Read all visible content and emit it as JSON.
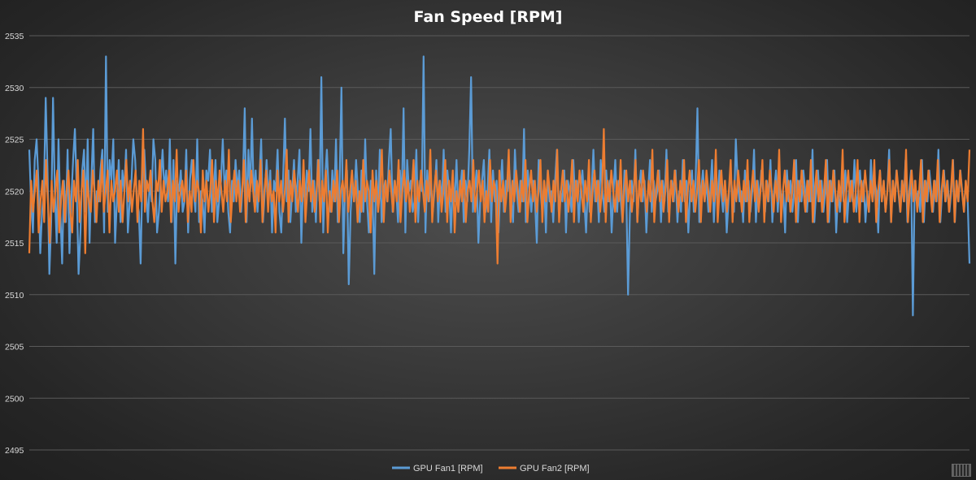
{
  "chart_data": {
    "type": "line",
    "title": "Fan Speed [RPM]",
    "xlabel": "",
    "ylabel": "",
    "ylim": [
      2495,
      2535
    ],
    "yticks": [
      2495,
      2500,
      2505,
      2510,
      2515,
      2520,
      2525,
      2530,
      2535
    ],
    "grid": true,
    "legend_position": "bottom",
    "colors": {
      "background": "#333333",
      "gridline": "#5a5a5a",
      "text": "#d9d9d9"
    },
    "series": [
      {
        "name": "GPU Fan1 [RPM]",
        "color": "#5b9bd5",
        "values": [
          2524,
          2519,
          2516,
          2523,
          2525,
          2521,
          2514,
          2518,
          2520,
          2529,
          2522,
          2512,
          2517,
          2529,
          2520,
          2515,
          2525,
          2518,
          2513,
          2521,
          2517,
          2524,
          2514,
          2519,
          2523,
          2526,
          2520,
          2512,
          2516,
          2522,
          2524,
          2518,
          2525,
          2515,
          2521,
          2526,
          2517,
          2520,
          2519,
          2522,
          2524,
          2516,
          2533,
          2518,
          2523,
          2521,
          2525,
          2515,
          2519,
          2523,
          2517,
          2522,
          2520,
          2524,
          2516,
          2519,
          2521,
          2525,
          2523,
          2519,
          2518,
          2513,
          2522,
          2524,
          2520,
          2517,
          2521,
          2519,
          2525,
          2523,
          2516,
          2518,
          2521,
          2524,
          2520,
          2522,
          2519,
          2525,
          2517,
          2523,
          2513,
          2521,
          2520,
          2522,
          2518,
          2519,
          2524,
          2516,
          2521,
          2523,
          2520,
          2518,
          2525,
          2517,
          2520,
          2519,
          2516,
          2522,
          2521,
          2524,
          2518,
          2520,
          2523,
          2517,
          2519,
          2521,
          2525,
          2520,
          2522,
          2518,
          2516,
          2521,
          2519,
          2523,
          2520,
          2522,
          2518,
          2521,
          2528,
          2517,
          2524,
          2520,
          2527,
          2519,
          2522,
          2518,
          2521,
          2525,
          2517,
          2520,
          2523,
          2519,
          2522,
          2516,
          2521,
          2520,
          2524,
          2518,
          2516,
          2521,
          2527,
          2519,
          2522,
          2517,
          2520,
          2523,
          2518,
          2521,
          2524,
          2515,
          2521,
          2519,
          2522,
          2520,
          2526,
          2518,
          2521,
          2517,
          2523,
          2519,
          2531,
          2516,
          2521,
          2524,
          2520,
          2518,
          2522,
          2519,
          2525,
          2517,
          2521,
          2530,
          2514,
          2520,
          2522,
          2511,
          2518,
          2521,
          2519,
          2523,
          2520,
          2517,
          2522,
          2518,
          2525,
          2519,
          2516,
          2521,
          2520,
          2512,
          2522,
          2518,
          2524,
          2517,
          2520,
          2521,
          2519,
          2523,
          2526,
          2518,
          2521,
          2520,
          2517,
          2522,
          2519,
          2528,
          2516,
          2523,
          2520,
          2521,
          2518,
          2519,
          2524,
          2517,
          2521,
          2520,
          2533,
          2516,
          2522,
          2519,
          2521,
          2518,
          2520,
          2523,
          2517,
          2521,
          2519,
          2524,
          2518,
          2522,
          2520,
          2516,
          2521,
          2519,
          2523,
          2518,
          2520,
          2522,
          2517,
          2521,
          2519,
          2524,
          2531,
          2518,
          2520,
          2522,
          2515,
          2519,
          2521,
          2523,
          2518,
          2520,
          2524,
          2517,
          2522,
          2519,
          2521,
          2516,
          2520,
          2523,
          2518,
          2521,
          2520,
          2522,
          2519,
          2517,
          2524,
          2520,
          2518,
          2521,
          2519,
          2526,
          2517,
          2522,
          2520,
          2518,
          2521,
          2519,
          2515,
          2523,
          2520,
          2518,
          2521,
          2516,
          2522,
          2519,
          2520,
          2517,
          2521,
          2524,
          2518,
          2520,
          2519,
          2522,
          2516,
          2521,
          2520,
          2518,
          2523,
          2519,
          2521,
          2517,
          2520,
          2522,
          2519,
          2516,
          2521,
          2518,
          2520,
          2524,
          2519,
          2521,
          2517,
          2523,
          2520,
          2518,
          2522,
          2519,
          2521,
          2516,
          2520,
          2523,
          2518,
          2521,
          2519,
          2517,
          2522,
          2520,
          2510,
          2518,
          2521,
          2519,
          2524,
          2517,
          2520,
          2522,
          2519,
          2521,
          2516,
          2520,
          2523,
          2518,
          2521,
          2519,
          2520,
          2522,
          2517,
          2521,
          2519,
          2524,
          2518,
          2520,
          2521,
          2519,
          2522,
          2517,
          2520,
          2518,
          2523,
          2519,
          2521,
          2516,
          2520,
          2522,
          2518,
          2521,
          2528,
          2517,
          2520,
          2522,
          2519,
          2521,
          2518,
          2520,
          2523,
          2517,
          2521,
          2519,
          2522,
          2520,
          2518,
          2521,
          2516,
          2519,
          2522,
          2520,
          2518,
          2525,
          2521,
          2519,
          2520,
          2517,
          2522,
          2519,
          2521,
          2518,
          2520,
          2524,
          2517,
          2521,
          2519,
          2522,
          2520,
          2518,
          2521,
          2519,
          2523,
          2517,
          2520,
          2522,
          2518,
          2521,
          2519,
          2520,
          2516,
          2522,
          2519,
          2521,
          2518,
          2520,
          2523,
          2517,
          2521,
          2519,
          2522,
          2520,
          2518,
          2521,
          2519,
          2524,
          2517,
          2520,
          2522,
          2519,
          2521,
          2518,
          2520,
          2523,
          2517,
          2521,
          2519,
          2522,
          2516,
          2520,
          2518,
          2521,
          2519,
          2522,
          2517,
          2520,
          2521,
          2519,
          2523,
          2518,
          2520,
          2522,
          2519,
          2521,
          2517,
          2520,
          2518,
          2523,
          2519,
          2521,
          2520,
          2516,
          2522,
          2519,
          2521,
          2518,
          2520,
          2524,
          2517,
          2521,
          2519,
          2522,
          2520,
          2518,
          2521,
          2519,
          2523,
          2517,
          2520,
          2522,
          2508,
          2521,
          2519,
          2520,
          2518,
          2523,
          2517,
          2521,
          2519,
          2522,
          2520,
          2518,
          2521,
          2519,
          2524,
          2517,
          2520,
          2522,
          2519,
          2521,
          2518,
          2520,
          2523,
          2517,
          2521,
          2519,
          2522,
          2520,
          2518,
          2521,
          2519,
          2513
        ]
      },
      {
        "name": "GPU Fan2 [RPM]",
        "color": "#ed7d31",
        "values": [
          2514,
          2521,
          2518,
          2520,
          2522,
          2516,
          2519,
          2521,
          2517,
          2523,
          2519,
          2515,
          2521,
          2518,
          2520,
          2522,
          2516,
          2519,
          2521,
          2517,
          2520,
          2522,
          2518,
          2516,
          2521,
          2519,
          2523,
          2517,
          2520,
          2522,
          2514,
          2521,
          2519,
          2518,
          2522,
          2520,
          2517,
          2521,
          2519,
          2523,
          2518,
          2520,
          2522,
          2516,
          2521,
          2519,
          2520,
          2522,
          2518,
          2521,
          2517,
          2520,
          2523,
          2519,
          2521,
          2518,
          2520,
          2522,
          2517,
          2521,
          2519,
          2526,
          2518,
          2521,
          2520,
          2522,
          2519,
          2517,
          2521,
          2520,
          2523,
          2518,
          2521,
          2519,
          2520,
          2522,
          2517,
          2521,
          2519,
          2524,
          2518,
          2520,
          2521,
          2519,
          2522,
          2517,
          2520,
          2518,
          2523,
          2519,
          2521,
          2520,
          2516,
          2522,
          2519,
          2521,
          2518,
          2520,
          2523,
          2517,
          2521,
          2519,
          2522,
          2520,
          2518,
          2521,
          2519,
          2524,
          2517,
          2520,
          2522,
          2519,
          2521,
          2518,
          2520,
          2523,
          2517,
          2521,
          2519,
          2522,
          2520,
          2518,
          2521,
          2519,
          2523,
          2517,
          2520,
          2522,
          2518,
          2521,
          2519,
          2520,
          2516,
          2522,
          2519,
          2521,
          2518,
          2520,
          2524,
          2517,
          2521,
          2519,
          2522,
          2520,
          2518,
          2521,
          2519,
          2523,
          2517,
          2520,
          2522,
          2519,
          2521,
          2518,
          2520,
          2523,
          2517,
          2521,
          2519,
          2522,
          2516,
          2520,
          2518,
          2521,
          2519,
          2522,
          2517,
          2520,
          2521,
          2519,
          2523,
          2518,
          2520,
          2522,
          2519,
          2521,
          2517,
          2520,
          2518,
          2523,
          2519,
          2521,
          2520,
          2516,
          2522,
          2519,
          2521,
          2518,
          2520,
          2524,
          2517,
          2521,
          2519,
          2522,
          2520,
          2518,
          2521,
          2519,
          2523,
          2517,
          2520,
          2522,
          2519,
          2521,
          2518,
          2520,
          2523,
          2517,
          2521,
          2519,
          2522,
          2520,
          2518,
          2521,
          2519,
          2524,
          2517,
          2520,
          2522,
          2519,
          2521,
          2518,
          2520,
          2523,
          2517,
          2521,
          2519,
          2522,
          2516,
          2520,
          2518,
          2521,
          2519,
          2522,
          2517,
          2520,
          2521,
          2519,
          2523,
          2518,
          2520,
          2522,
          2519,
          2521,
          2517,
          2520,
          2518,
          2523,
          2519,
          2521,
          2520,
          2513,
          2522,
          2519,
          2521,
          2518,
          2520,
          2524,
          2517,
          2521,
          2519,
          2522,
          2520,
          2518,
          2521,
          2519,
          2523,
          2517,
          2520,
          2522,
          2519,
          2521,
          2518,
          2520,
          2523,
          2517,
          2521,
          2519,
          2522,
          2520,
          2518,
          2521,
          2519,
          2524,
          2517,
          2520,
          2522,
          2519,
          2521,
          2518,
          2520,
          2523,
          2517,
          2521,
          2519,
          2522,
          2520,
          2518,
          2521,
          2519,
          2523,
          2517,
          2520,
          2522,
          2519,
          2521,
          2518,
          2520,
          2526,
          2517,
          2521,
          2519,
          2522,
          2520,
          2518,
          2521,
          2519,
          2523,
          2517,
          2520,
          2522,
          2519,
          2521,
          2518,
          2520,
          2523,
          2517,
          2521,
          2519,
          2522,
          2520,
          2518,
          2521,
          2519,
          2524,
          2517,
          2520,
          2522,
          2519,
          2521,
          2518,
          2520,
          2523,
          2517,
          2521,
          2519,
          2522,
          2520,
          2518,
          2521,
          2519,
          2523,
          2517,
          2520,
          2522,
          2519,
          2521,
          2518,
          2520,
          2523,
          2517,
          2521,
          2519,
          2522,
          2520,
          2518,
          2521,
          2519,
          2524,
          2517,
          2520,
          2522,
          2519,
          2521,
          2518,
          2520,
          2523,
          2517,
          2521,
          2519,
          2522,
          2520,
          2518,
          2521,
          2519,
          2523,
          2517,
          2520,
          2522,
          2519,
          2521,
          2518,
          2520,
          2523,
          2517,
          2521,
          2519,
          2522,
          2520,
          2518,
          2521,
          2519,
          2524,
          2517,
          2520,
          2522,
          2519,
          2521,
          2518,
          2520,
          2523,
          2517,
          2521,
          2519,
          2522,
          2520,
          2518,
          2521,
          2519,
          2523,
          2517,
          2520,
          2522,
          2519,
          2521,
          2518,
          2520,
          2523,
          2517,
          2521,
          2519,
          2522,
          2520,
          2518,
          2521,
          2519,
          2524,
          2517,
          2520,
          2522,
          2519,
          2521,
          2518,
          2520,
          2523,
          2517,
          2521,
          2519,
          2522,
          2520,
          2518,
          2521,
          2519,
          2523,
          2517,
          2520,
          2522,
          2519,
          2521,
          2518,
          2520,
          2523,
          2517,
          2521,
          2519,
          2522,
          2520,
          2518,
          2521,
          2519,
          2524,
          2517,
          2520,
          2522,
          2519,
          2521,
          2518,
          2520,
          2523,
          2517,
          2521,
          2519,
          2522,
          2520,
          2518,
          2521,
          2519,
          2523,
          2517,
          2520,
          2522,
          2519,
          2521,
          2518,
          2520,
          2523,
          2517,
          2521,
          2519,
          2522,
          2520,
          2518,
          2521,
          2519,
          2524
        ]
      }
    ]
  }
}
